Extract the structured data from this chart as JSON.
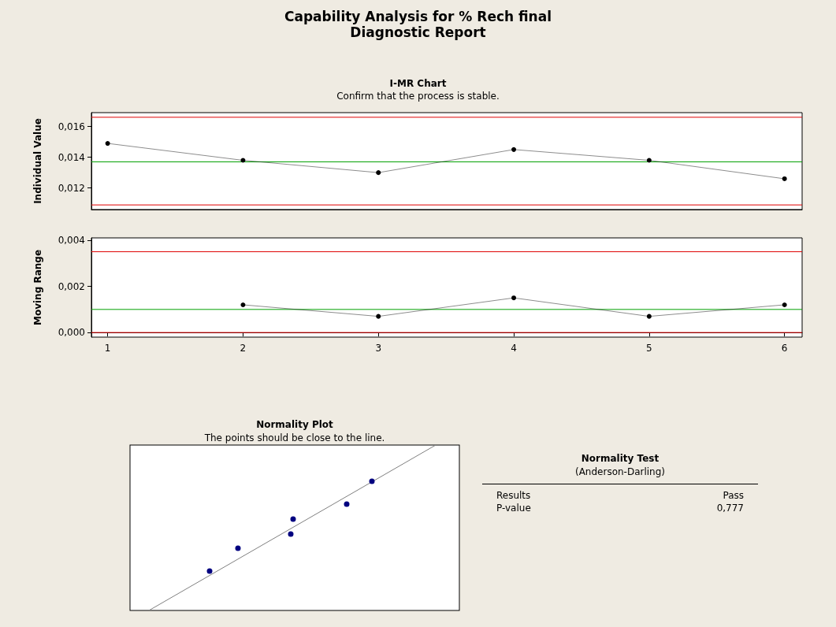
{
  "chart_data": [
    {
      "type": "line",
      "title": "I-MR Chart",
      "subtitle": "Confirm that the process is stable.",
      "ylabel": "Individual Value",
      "annotations": [
        "Capability Analysis for % Rech final",
        "Diagnostic Report"
      ],
      "x": [
        1,
        2,
        3,
        4,
        5,
        6
      ],
      "series": [
        {
          "color": "#000000",
          "values": [
            0.0149,
            0.0138,
            0.013,
            0.0145,
            0.0138,
            0.0126
          ]
        }
      ],
      "xlim": [
        0.88,
        6.13
      ],
      "ylim": [
        0.0106,
        0.0169
      ],
      "yticks": [
        {
          "value": 0.012,
          "label": "0,012"
        },
        {
          "value": 0.014,
          "label": "0,014"
        },
        {
          "value": 0.016,
          "label": "0,016"
        }
      ],
      "ref_lines": [
        {
          "axis": "y",
          "value": 0.0166,
          "color": "#e00000"
        },
        {
          "axis": "y",
          "value": 0.0137,
          "color": "#00a000"
        },
        {
          "axis": "y",
          "value": 0.0109,
          "color": "#e00000"
        }
      ],
      "tick_labels": "y",
      "grid": false,
      "marker": "circle",
      "line_style": "solid"
    },
    {
      "type": "line",
      "ylabel": "Moving Range",
      "series": [
        {
          "color": "#000000",
          "x": [
            2,
            3,
            4,
            5,
            6
          ],
          "values": [
            0.0012,
            0.0007,
            0.0015,
            0.0007,
            0.0012
          ]
        }
      ],
      "xlim": [
        0.88,
        6.13
      ],
      "ylim": [
        -0.0002,
        0.0041
      ],
      "xticks": [
        1,
        2,
        3,
        4,
        5,
        6
      ],
      "yticks": [
        {
          "value": 0,
          "label": "0,000"
        },
        {
          "value": 0.002,
          "label": "0,002"
        },
        {
          "value": 0.004,
          "label": "0,004"
        }
      ],
      "ref_lines": [
        {
          "axis": "y",
          "value": 0.0035,
          "color": "#e00000"
        },
        {
          "axis": "y",
          "value": 0.001,
          "color": "#00a000"
        },
        {
          "axis": "y",
          "value": 0,
          "color": "#e00000"
        }
      ],
      "grid": false,
      "marker": "circle",
      "line_style": "solid"
    },
    {
      "type": "other",
      "title": "Normality Plot",
      "subtitle": "The points should be close to the line."
    },
    {
      "type": "other",
      "title": "Normality Test",
      "subtitle": "(Anderson-Darling)",
      "annotations": [
        "Results",
        "Pass",
        "P-value",
        "0,777"
      ]
    }
  ]
}
